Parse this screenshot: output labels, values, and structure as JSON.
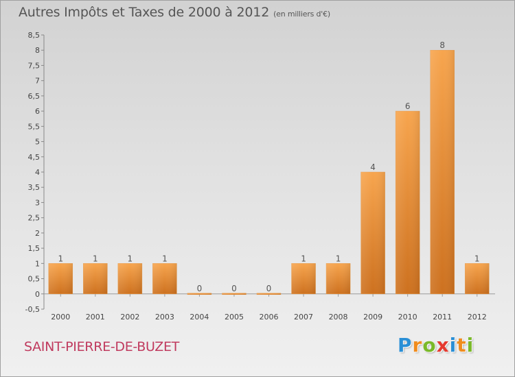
{
  "header": {
    "title": "Autres Impôts et Taxes de 2000 à 2012",
    "subtitle": "(en milliers d'€)"
  },
  "footer": {
    "commune": "SAINT-PIERRE-DE-BUZET",
    "brand": "Proxiti",
    "brand_letters": [
      {
        "char": "P",
        "color": "#2a8fd6"
      },
      {
        "char": "r",
        "color": "#f08c1e"
      },
      {
        "char": "o",
        "color": "#7ab929"
      },
      {
        "char": "x",
        "color": "#e53a2f"
      },
      {
        "char": "i",
        "color": "#2a8fd6"
      },
      {
        "char": "t",
        "color": "#f08c1e"
      },
      {
        "char": "i",
        "color": "#7ab929"
      }
    ]
  },
  "chart_data": {
    "type": "bar",
    "categories": [
      "2000",
      "2001",
      "2002",
      "2003",
      "2004",
      "2005",
      "2006",
      "2007",
      "2008",
      "2009",
      "2010",
      "2011",
      "2012"
    ],
    "values": [
      1,
      1,
      1,
      1,
      0,
      0,
      0,
      1,
      1,
      4,
      6,
      8,
      1
    ],
    "data_labels": [
      "1",
      "1",
      "1",
      "1",
      "0",
      "0",
      "0",
      "1",
      "1",
      "4",
      "6",
      "8",
      "1"
    ],
    "ylim": [
      -0.5,
      8.5
    ],
    "yticks": [
      -0.5,
      0,
      0.5,
      1,
      1.5,
      2,
      2.5,
      3,
      3.5,
      4,
      4.5,
      5,
      5.5,
      6,
      6.5,
      7,
      7.5,
      8,
      8.5
    ],
    "ytick_labels": [
      "-0,5",
      "0",
      "0,5",
      "1",
      "1,5",
      "2",
      "2,5",
      "3",
      "3,5",
      "4",
      "4,5",
      "5",
      "5,5",
      "6",
      "6,5",
      "7",
      "7,5",
      "8",
      "8,5"
    ],
    "grid": false,
    "legend": "none",
    "bar_color": "#f0a04a",
    "bar_color_dark": "#c86e1e"
  }
}
